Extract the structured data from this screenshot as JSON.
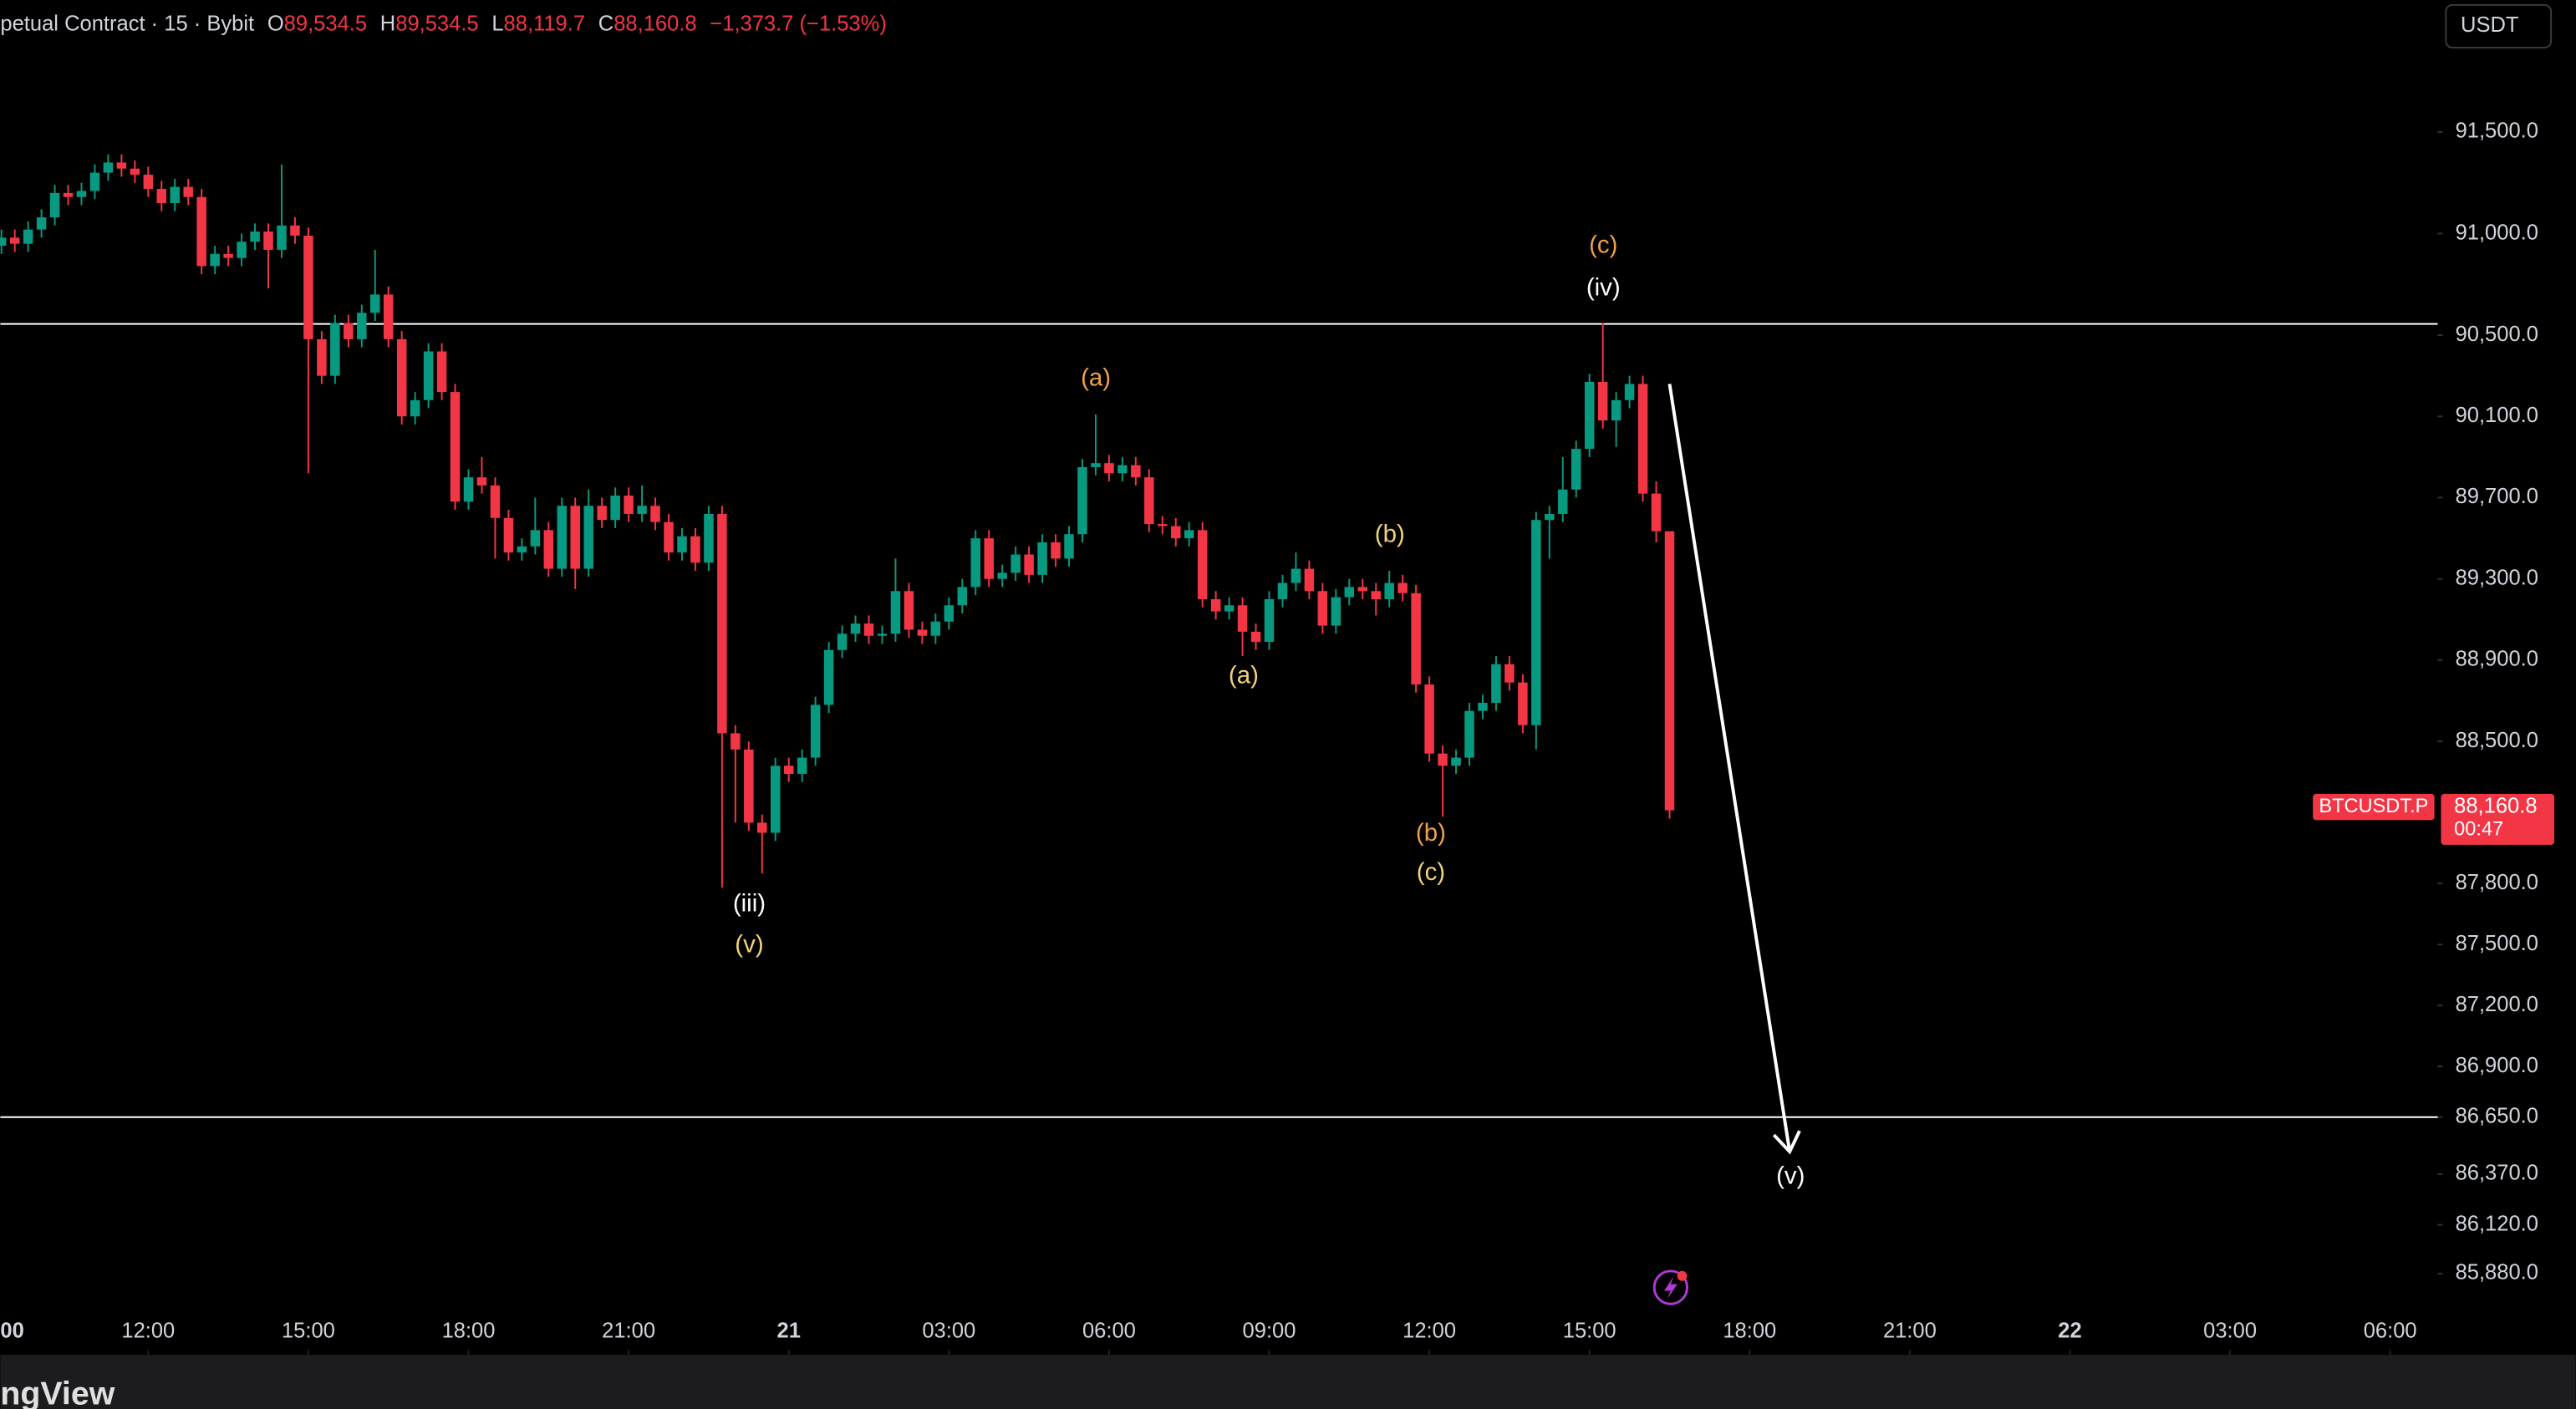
{
  "header": {
    "symbol": "petual Contract · 15 · Bybit",
    "fields": [
      {
        "key": "O",
        "value": "89,534.5"
      },
      {
        "key": "H",
        "value": "89,534.5"
      },
      {
        "key": "L",
        "value": "88,119.7"
      },
      {
        "key": "C",
        "value": "88,160.8"
      }
    ],
    "change": "−1,373.7 (−1.53%)"
  },
  "currency_button": "USDT",
  "price_tag": {
    "symbol": "BTCUSDT.P",
    "price": "88,160.8",
    "countdown": "00:47"
  },
  "logo": "ngView",
  "chart_data": {
    "type": "candlestick",
    "up_color": "#089981",
    "down_color": "#f23645",
    "x": [
      9.25,
      9.5,
      9.75,
      10,
      10.25,
      10.5,
      10.75,
      11,
      11.25,
      11.5,
      11.75,
      12,
      12.25,
      12.5,
      12.75,
      13,
      13.25,
      13.5,
      13.75,
      14,
      14.25,
      14.5,
      14.75,
      15,
      15.25,
      15.5,
      15.75,
      16,
      16.25,
      16.5,
      16.75,
      17,
      17.25,
      17.5,
      17.75,
      18,
      18.25,
      18.5,
      18.75,
      19,
      19.25,
      19.5,
      19.75,
      20,
      20.25,
      20.5,
      20.75,
      21,
      21.25,
      21.5,
      21.75,
      22,
      22.25,
      22.5,
      22.75,
      23,
      23.25,
      23.5,
      23.75,
      24,
      24.25,
      24.5,
      24.75,
      25,
      25.25,
      25.5,
      25.75,
      26,
      26.25,
      26.5,
      26.75,
      27,
      27.25,
      27.5,
      27.75,
      28,
      28.25,
      28.5,
      28.75,
      29,
      29.25,
      29.5,
      29.75,
      30,
      30.25,
      30.5,
      30.75,
      31,
      31.25,
      31.5,
      31.75,
      32,
      32.25,
      32.5,
      32.75,
      33,
      33.25,
      33.5,
      33.75,
      34,
      34.25,
      34.5,
      34.75,
      35,
      35.25,
      35.5,
      35.75,
      36,
      36.25,
      36.5,
      36.75,
      37,
      37.25,
      37.5,
      37.75,
      38,
      38.25,
      38.5,
      38.75,
      39,
      39.25,
      39.5,
      39.75,
      40,
      40.25,
      40.5
    ],
    "open": [
      90940,
      90980,
      90950,
      91020,
      91080,
      91200,
      91180,
      91210,
      91300,
      91350,
      91320,
      91290,
      91220,
      91150,
      91230,
      91180,
      90840,
      90900,
      90880,
      90960,
      91010,
      90920,
      91040,
      90990,
      90480,
      90300,
      90560,
      90480,
      90610,
      90700,
      90480,
      90100,
      90180,
      90420,
      90220,
      89680,
      89800,
      89760,
      89600,
      89430,
      89460,
      89540,
      89350,
      89660,
      89350,
      89660,
      89590,
      89710,
      89620,
      89660,
      89580,
      89430,
      89510,
      89380,
      89620,
      88540,
      88460,
      88100,
      88050,
      88380,
      88340,
      88420,
      88680,
      88950,
      89030,
      89080,
      89020,
      89030,
      89240,
      89050,
      89020,
      89090,
      89170,
      89260,
      89500,
      89300,
      89330,
      89420,
      89320,
      89480,
      89400,
      89520,
      89850,
      89870,
      89820,
      89860,
      89800,
      89570,
      89560,
      89500,
      89540,
      89200,
      89140,
      89170,
      89040,
      88990,
      89200,
      89280,
      89350,
      89240,
      89070,
      89210,
      89260,
      89240,
      89200,
      89280,
      89230,
      88780,
      88440,
      88380,
      88420,
      88650,
      88690,
      88880,
      88790,
      88580,
      89590,
      89620,
      89740,
      89940,
      90270,
      90080,
      90180,
      90260,
      89720,
      89534.5
    ],
    "high": [
      91020,
      91020,
      91060,
      91120,
      91240,
      91240,
      91250,
      91340,
      91390,
      91390,
      91360,
      91330,
      91260,
      91270,
      91270,
      91220,
      90940,
      90940,
      91000,
      91050,
      91050,
      91340,
      91080,
      91030,
      90520,
      90600,
      90600,
      90650,
      90920,
      90740,
      90520,
      90220,
      90460,
      90460,
      90260,
      89840,
      89900,
      89800,
      89640,
      89500,
      89700,
      89580,
      89700,
      89700,
      89740,
      89700,
      89750,
      89750,
      89760,
      89700,
      89620,
      89550,
      89550,
      89660,
      89660,
      88580,
      88500,
      88140,
      88420,
      88420,
      88460,
      88720,
      88990,
      89070,
      89120,
      89120,
      89070,
      89400,
      89280,
      89090,
      89130,
      89210,
      89300,
      89540,
      89540,
      89370,
      89460,
      89460,
      89520,
      89520,
      89560,
      89890,
      90110,
      89910,
      89900,
      89900,
      89840,
      89610,
      89600,
      89580,
      89580,
      89240,
      89210,
      89210,
      89080,
      89240,
      89320,
      89430,
      89390,
      89280,
      89250,
      89300,
      89300,
      89280,
      89340,
      89320,
      89270,
      88820,
      88480,
      88460,
      88690,
      88730,
      88920,
      88920,
      88830,
      89630,
      89660,
      89900,
      89980,
      90310,
      90560,
      90220,
      90300,
      90300,
      89780,
      89534.5
    ],
    "low": [
      90900,
      90910,
      90910,
      90980,
      91040,
      91140,
      91140,
      91170,
      91260,
      91280,
      91250,
      91180,
      91110,
      91110,
      91140,
      90800,
      90800,
      90840,
      90840,
      90920,
      90730,
      90880,
      90950,
      89820,
      90260,
      90260,
      90440,
      90440,
      90570,
      90440,
      90060,
      90060,
      90140,
      90180,
      89640,
      89640,
      89720,
      89400,
      89390,
      89390,
      89420,
      89310,
      89310,
      89250,
      89310,
      89550,
      89550,
      89580,
      89580,
      89540,
      89390,
      89390,
      89340,
      89340,
      87780,
      88100,
      88060,
      87850,
      88010,
      88300,
      88300,
      88380,
      88640,
      88910,
      88990,
      88980,
      88980,
      88990,
      89010,
      88980,
      88980,
      89050,
      89130,
      89220,
      89260,
      89260,
      89290,
      89280,
      89280,
      89360,
      89360,
      89480,
      89810,
      89780,
      89780,
      89760,
      89530,
      89520,
      89460,
      89460,
      89160,
      89100,
      89100,
      88920,
      88950,
      88950,
      89160,
      89240,
      89200,
      89030,
      89030,
      89170,
      89200,
      89120,
      89160,
      89190,
      88740,
      88400,
      88130,
      88340,
      88380,
      88610,
      88650,
      88750,
      88540,
      88460,
      89400,
      89580,
      89700,
      89900,
      90040,
      89950,
      90140,
      89680,
      89480,
      88119.7
    ],
    "close": [
      90980,
      90950,
      91020,
      91080,
      91200,
      91180,
      91210,
      91300,
      91350,
      91320,
      91290,
      91220,
      91150,
      91230,
      91180,
      90840,
      90900,
      90880,
      90960,
      91010,
      90920,
      91040,
      90990,
      90480,
      90300,
      90560,
      90480,
      90610,
      90700,
      90480,
      90100,
      90180,
      90420,
      90220,
      89680,
      89800,
      89760,
      89600,
      89430,
      89460,
      89540,
      89350,
      89660,
      89350,
      89660,
      89590,
      89710,
      89620,
      89660,
      89580,
      89430,
      89510,
      89380,
      89620,
      88540,
      88460,
      88100,
      88050,
      88380,
      88340,
      88420,
      88680,
      88950,
      89030,
      89080,
      89020,
      89030,
      89240,
      89050,
      89020,
      89090,
      89170,
      89260,
      89500,
      89300,
      89330,
      89420,
      89320,
      89480,
      89400,
      89520,
      89850,
      89870,
      89820,
      89860,
      89800,
      89570,
      89560,
      89500,
      89540,
      89200,
      89140,
      89170,
      89040,
      88990,
      89200,
      89280,
      89350,
      89240,
      89070,
      89210,
      89260,
      89240,
      89200,
      89280,
      89230,
      88780,
      88440,
      88380,
      88420,
      88650,
      88690,
      88880,
      88790,
      88580,
      89590,
      89620,
      89740,
      89940,
      90270,
      90080,
      90180,
      90260,
      89720,
      89534.5,
      88160.8
    ],
    "xlim": [
      9.23,
      54.89
    ],
    "xticks": [
      {
        "value": 9,
        "label": "00"
      },
      {
        "value": 12,
        "label": "12:00"
      },
      {
        "value": 15,
        "label": "15:00"
      },
      {
        "value": 18,
        "label": "18:00"
      },
      {
        "value": 21,
        "label": "21:00"
      },
      {
        "value": 24,
        "label": "21"
      },
      {
        "value": 27,
        "label": "03:00"
      },
      {
        "value": 30,
        "label": "06:00"
      },
      {
        "value": 33,
        "label": "09:00"
      },
      {
        "value": 36,
        "label": "12:00"
      },
      {
        "value": 39,
        "label": "15:00"
      },
      {
        "value": 42,
        "label": "18:00"
      },
      {
        "value": 45,
        "label": "21:00"
      },
      {
        "value": 48,
        "label": "22"
      },
      {
        "value": 51,
        "label": "03:00"
      },
      {
        "value": 54,
        "label": "06:00"
      }
    ],
    "ylim": [
      85480,
      92150
    ],
    "yticks": [
      {
        "value": 91500,
        "label": "91,500.0"
      },
      {
        "value": 91000,
        "label": "91,000.0"
      },
      {
        "value": 90500,
        "label": "90,500.0"
      },
      {
        "value": 90100,
        "label": "90,100.0"
      },
      {
        "value": 89700,
        "label": "89,700.0"
      },
      {
        "value": 89300,
        "label": "89,300.0"
      },
      {
        "value": 88900,
        "label": "88,900.0"
      },
      {
        "value": 88500,
        "label": "88,500.0"
      },
      {
        "value": 87800,
        "label": "87,800.0"
      },
      {
        "value": 87500,
        "label": "87,500.0"
      },
      {
        "value": 87200,
        "label": "87,200.0"
      },
      {
        "value": 86900,
        "label": "86,900.0"
      },
      {
        "value": 86650,
        "label": "86,650.0"
      },
      {
        "value": 86370,
        "label": "86,370.0"
      },
      {
        "value": 86120,
        "label": "86,120.0"
      },
      {
        "value": 85880,
        "label": "85,880.0"
      }
    ],
    "hlines": [
      90555,
      86650
    ],
    "arrow": {
      "from": [
        40.5,
        90260
      ],
      "to": [
        42.75,
        86480
      ]
    },
    "annotations": [
      {
        "text": "(c)",
        "color": "#f0a04b"
      },
      {
        "text": "(iv)",
        "color": "#ffffff"
      },
      {
        "text": "(a)",
        "color": "#f0a04b"
      },
      {
        "text": "(b)",
        "color": "#f2d27a"
      },
      {
        "text": "(a)",
        "color": "#f2d27a"
      },
      {
        "text": "(b)",
        "color": "#f0a04b"
      },
      {
        "text": "(c)",
        "color": "#f2d27a"
      },
      {
        "text": "(iii)",
        "color": "#ffffff"
      },
      {
        "text": "(v)",
        "color": "#f2d27a"
      },
      {
        "text": "(v)",
        "color": "#ffffff"
      }
    ]
  }
}
